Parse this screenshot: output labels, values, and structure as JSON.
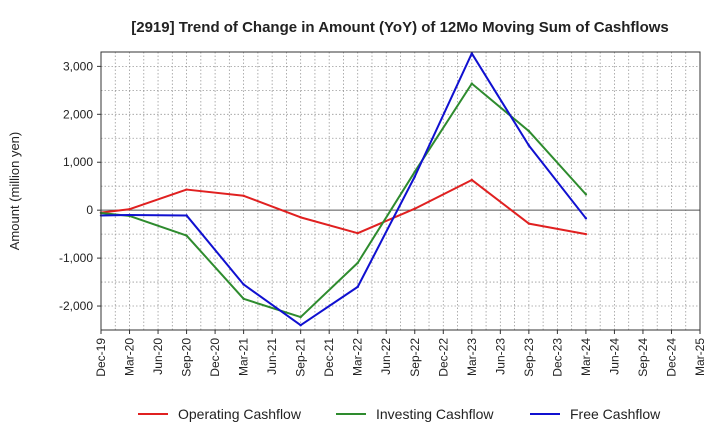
{
  "chart_data": {
    "type": "line",
    "title": "[2919]  Trend of Change in Amount (YoY) of 12Mo Moving Sum of Cashflows",
    "xlabel": "",
    "ylabel": "Amount (million yen)",
    "ylim": [
      -2500,
      3300
    ],
    "yticks": [
      -2000,
      -1000,
      0,
      1000,
      2000,
      3000
    ],
    "ytick_labels": [
      "-2,000",
      "-1,000",
      "0",
      "1,000",
      "2,000",
      "3,000"
    ],
    "grid": true,
    "legend_position": "bottom",
    "categories": [
      "Dec-19",
      "Mar-20",
      "Jun-20",
      "Sep-20",
      "Dec-20",
      "Mar-21",
      "Jun-21",
      "Sep-21",
      "Dec-21",
      "Mar-22",
      "Jun-22",
      "Sep-22",
      "Dec-22",
      "Mar-23",
      "Jun-23",
      "Sep-23",
      "Dec-23",
      "Mar-24",
      "Jun-24",
      "Sep-24",
      "Dec-24",
      "Mar-25"
    ],
    "series": [
      {
        "name": "Operating Cashflow",
        "color": "#e02020",
        "values": [
          -50,
          20,
          null,
          430,
          null,
          300,
          null,
          -150,
          null,
          -480,
          null,
          30,
          null,
          630,
          null,
          -280,
          null,
          -500,
          null,
          null,
          null,
          null
        ]
      },
      {
        "name": "Investing Cashflow",
        "color": "#2e8b2e",
        "values": [
          -60,
          -120,
          null,
          -530,
          null,
          -1850,
          null,
          -2230,
          null,
          -1100,
          null,
          800,
          null,
          2640,
          null,
          1650,
          null,
          330,
          null,
          null,
          null,
          null
        ]
      },
      {
        "name": "Free Cashflow",
        "color": "#1010d0",
        "values": [
          -110,
          -100,
          null,
          -110,
          null,
          -1550,
          null,
          -2400,
          null,
          -1600,
          null,
          700,
          null,
          3270,
          null,
          1350,
          null,
          -170,
          null,
          null,
          null,
          null
        ]
      }
    ]
  }
}
